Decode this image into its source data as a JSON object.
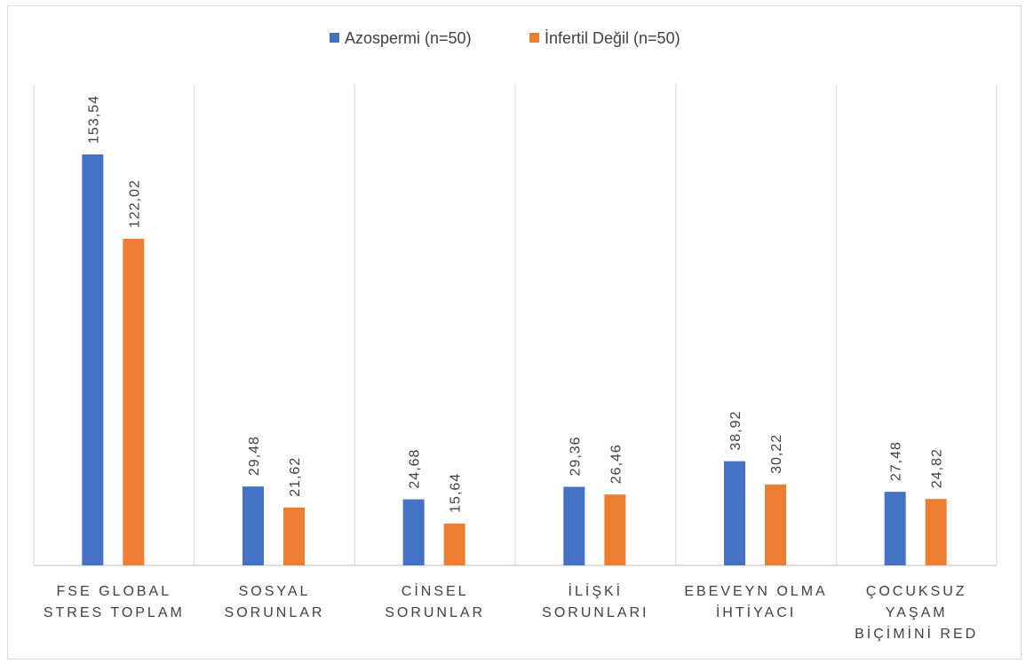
{
  "chart_data": {
    "type": "bar",
    "categories": [
      [
        "FSE GLOBAL",
        "STRES TOPLAM"
      ],
      [
        "SOSYAL",
        "SORUNLAR"
      ],
      [
        "CİNSEL",
        "SORUNLAR"
      ],
      [
        "İLİŞKİ",
        "SORUNLARI"
      ],
      [
        "EBEVEYN OLMA",
        "İHTİYACI"
      ],
      [
        "ÇOCUKSUZ",
        "YAŞAM",
        "BİÇİMİNİ RED"
      ]
    ],
    "series": [
      {
        "name": "Azospermi (n=50)",
        "color": "#4472c4",
        "values": [
          153.54,
          29.48,
          24.68,
          29.36,
          38.92,
          27.48
        ],
        "labels": [
          "153,54",
          "29,48",
          "24,68",
          "29,36",
          "38,92",
          "27,48"
        ]
      },
      {
        "name": "İnfertil Değil (n=50)",
        "color": "#ed7d31",
        "values": [
          122.02,
          21.62,
          15.64,
          26.46,
          30.22,
          24.82
        ],
        "labels": [
          "122,02",
          "21,62",
          "15,64",
          "26,46",
          "30,22",
          "24,82"
        ]
      }
    ],
    "legend_position": "top",
    "grid": "vertical-category-separators",
    "ylim": [
      0,
      180
    ]
  }
}
